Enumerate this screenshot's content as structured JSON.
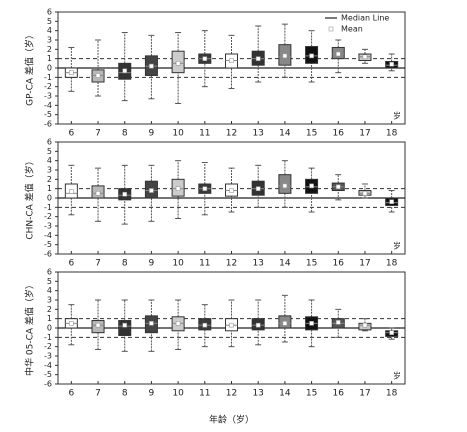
{
  "chart_data": [
    {
      "type": "box",
      "ylabel": "GP-CA 差值（岁）",
      "unit_label": "岁",
      "categories": [
        "6",
        "7",
        "8",
        "9",
        "10",
        "11",
        "12",
        "13",
        "14",
        "15",
        "16",
        "17",
        "18"
      ],
      "ylim": [
        -6,
        6
      ],
      "yticks": [
        -6,
        -5,
        -4,
        -3,
        -2,
        -1,
        0,
        1,
        2,
        3,
        4,
        5,
        6
      ],
      "ref_lines": [
        -1,
        1
      ],
      "baseline": 0,
      "legend": [
        "Median Line",
        "Mean"
      ],
      "legend_loc": "upper right",
      "low": [
        -2.5,
        -3,
        -3.5,
        -3.3,
        -3.8,
        -2,
        -2.2,
        -1.5,
        -1,
        -1.5,
        -0.5,
        0.5,
        -0.3
      ],
      "q1": [
        -1,
        -1.5,
        -1.2,
        -0.8,
        -0.5,
        0.5,
        0,
        0.3,
        0.3,
        0.5,
        1,
        0.8,
        0
      ],
      "median": [
        -0.5,
        -0.8,
        -0.5,
        0.2,
        0.5,
        1,
        0.8,
        1,
        1.2,
        1.3,
        1.5,
        1.2,
        0.3
      ],
      "q3": [
        0,
        -0.2,
        0.5,
        1.3,
        1.8,
        1.5,
        1.5,
        1.8,
        2.5,
        2.3,
        2.2,
        1.5,
        0.7
      ],
      "high": [
        2.2,
        3,
        3.8,
        3.5,
        3.8,
        4,
        3.5,
        4.5,
        4.7,
        4,
        3,
        2,
        1.5
      ],
      "mean": [
        -0.5,
        -0.8,
        -0.3,
        0.2,
        0.5,
        1,
        0.8,
        1,
        1.3,
        1.3,
        1.5,
        1.2,
        0.4
      ],
      "colors": [
        "#ffffff",
        "#b8b8b8",
        "#333333",
        "#444444",
        "#cccccc",
        "#3a3a3a",
        "#ffffff",
        "#333333",
        "#888888",
        "#111111",
        "#888888",
        "#c8c8c8",
        "#111111"
      ]
    },
    {
      "type": "box",
      "ylabel": "CHN-CA 差值（岁）",
      "unit_label": "岁",
      "categories": [
        "6",
        "7",
        "8",
        "9",
        "10",
        "11",
        "12",
        "13",
        "14",
        "15",
        "16",
        "17",
        "18"
      ],
      "ylim": [
        -6,
        6
      ],
      "yticks": [
        -6,
        -5,
        -4,
        -3,
        -2,
        -1,
        0,
        1,
        2,
        3,
        4,
        5,
        6
      ],
      "ref_lines": [
        -1,
        1
      ],
      "baseline": 0,
      "low": [
        -1.8,
        -2.5,
        -2.8,
        -2.5,
        -2.2,
        -1.8,
        -1.5,
        -1,
        -1,
        -1.5,
        -0.2,
        0,
        -1.5
      ],
      "q1": [
        0,
        0,
        -0.2,
        0,
        0.2,
        0.5,
        0.2,
        0.3,
        0.5,
        0.5,
        0.8,
        0.3,
        -0.8
      ],
      "median": [
        0.5,
        0.5,
        0.3,
        0.8,
        1,
        1,
        0.8,
        1,
        1.3,
        1.2,
        1.2,
        0.5,
        -0.5
      ],
      "q3": [
        1.5,
        1.3,
        1,
        1.8,
        2,
        1.5,
        1.5,
        1.8,
        2.5,
        2,
        1.6,
        0.8,
        0
      ],
      "high": [
        3.5,
        3.2,
        3.5,
        3.5,
        4,
        3.8,
        3.2,
        3.5,
        4,
        3.2,
        2.5,
        1.5,
        0.8
      ],
      "mean": [
        0.7,
        0.5,
        0.4,
        0.8,
        1,
        1,
        0.8,
        1,
        1.3,
        1.3,
        1.2,
        0.5,
        -0.4
      ],
      "colors": [
        "#ffffff",
        "#b8b8b8",
        "#333333",
        "#444444",
        "#cccccc",
        "#3a3a3a",
        "#ffffff",
        "#333333",
        "#888888",
        "#111111",
        "#555555",
        "#c8c8c8",
        "#111111"
      ]
    },
    {
      "type": "box",
      "ylabel": "中华 05-CA 差值（岁）",
      "unit_label": "岁",
      "xlabel": "年龄（岁）",
      "categories": [
        "6",
        "7",
        "8",
        "9",
        "10",
        "11",
        "12",
        "13",
        "14",
        "15",
        "16",
        "17",
        "18"
      ],
      "ylim": [
        -6,
        6
      ],
      "yticks": [
        -6,
        -5,
        -4,
        -3,
        -2,
        -1,
        0,
        1,
        2,
        3,
        4,
        5,
        6
      ],
      "ref_lines": [
        -1,
        1
      ],
      "baseline": 0,
      "low": [
        -1.8,
        -2.3,
        -2.5,
        -2.5,
        -2.3,
        -2,
        -2,
        -1.8,
        -1.5,
        -2,
        -1,
        -0.3,
        -1.2
      ],
      "q1": [
        0,
        -0.5,
        -0.8,
        -0.5,
        -0.3,
        -0.2,
        -0.3,
        -0.2,
        0,
        -0.2,
        0,
        -0.2,
        -0.9
      ],
      "median": [
        0.5,
        0.3,
        0.2,
        0.5,
        0.5,
        0.3,
        0.3,
        0.3,
        0.5,
        0.5,
        0.5,
        0.3,
        -0.5
      ],
      "q3": [
        1,
        0.8,
        0.8,
        1.3,
        1.2,
        1,
        1,
        1,
        1.3,
        1.2,
        1,
        0.5,
        -0.3
      ],
      "high": [
        2.5,
        3,
        3,
        3,
        3,
        2.5,
        3,
        3,
        3.5,
        3,
        2,
        1,
        0
      ],
      "mean": [
        0.5,
        0.3,
        0.3,
        0.5,
        0.5,
        0.3,
        0.3,
        0.3,
        0.5,
        0.5,
        0.6,
        0.3,
        -0.5
      ],
      "colors": [
        "#ffffff",
        "#b8b8b8",
        "#333333",
        "#444444",
        "#cccccc",
        "#3a3a3a",
        "#ffffff",
        "#333333",
        "#888888",
        "#111111",
        "#555555",
        "#c8c8c8",
        "#111111"
      ]
    }
  ]
}
